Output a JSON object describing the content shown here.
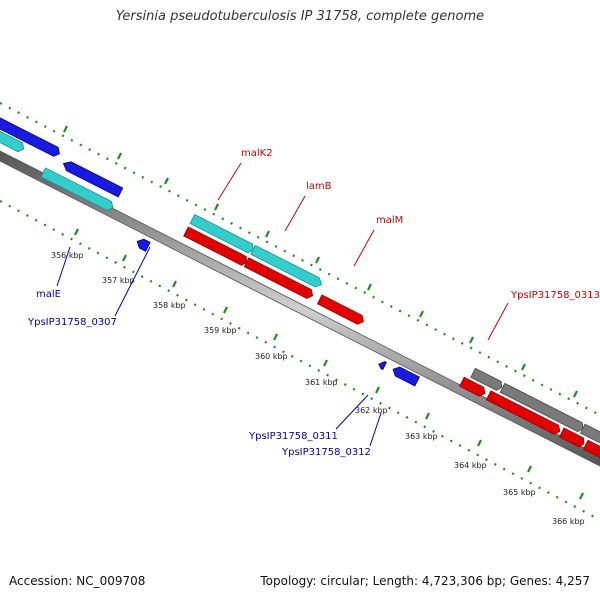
{
  "title": "Yersinia pseudotuberculosis IP 31758, complete genome",
  "footer": {
    "accession": "Accession: NC_009708",
    "topology": "Topology: circular; Length: 4,723,306 bp; Genes: 4,257"
  },
  "ticks": [
    "356 kbp",
    "357 kbp",
    "358 kbp",
    "359 kbp",
    "360 kbp",
    "361 kbp",
    "362 kbp",
    "363 kbp",
    "364 kbp",
    "365 kbp",
    "366 kbp"
  ],
  "labels": {
    "top": [
      "malK2",
      "lamB",
      "malM",
      "YpsIP31758_0313"
    ],
    "bottom": [
      "malE",
      "YpsIP31758_0307",
      "YpsIP31758_0311",
      "YpsIP31758_0312"
    ]
  },
  "colors": {
    "forward_red": "#e00000",
    "cyan": "#35cccc",
    "blue": "#1a1ae0",
    "gray": "#7a7a7a",
    "label_red": "#cc0000",
    "label_blue": "#0000aa",
    "dots": "#228822"
  }
}
